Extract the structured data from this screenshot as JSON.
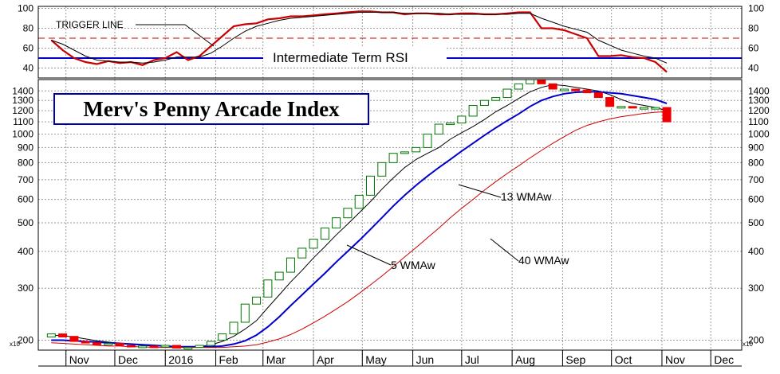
{
  "chart_data": [
    {
      "type": "line",
      "panel": "rsi",
      "annotations": [
        "TRIGGER LINE",
        "Intermediate Term RSI"
      ],
      "ylim": [
        30,
        102
      ],
      "yticks": [
        40,
        60,
        80,
        100
      ],
      "reference_lines": [
        {
          "y": 70,
          "style": "dashed",
          "color": "#cc0000"
        },
        {
          "y": 50,
          "style": "solid",
          "color": "#0000cc"
        }
      ],
      "x": [
        "2015-10-23",
        "2015-10-30",
        "2015-11-06",
        "2015-11-13",
        "2015-11-20",
        "2015-11-27",
        "2015-12-04",
        "2015-12-11",
        "2015-12-18",
        "2015-12-25",
        "2016-01-01",
        "2016-01-08",
        "2016-01-15",
        "2016-01-22",
        "2016-01-29",
        "2016-02-05",
        "2016-02-12",
        "2016-02-19",
        "2016-02-26",
        "2016-03-04",
        "2016-03-11",
        "2016-03-18",
        "2016-03-25",
        "2016-04-01",
        "2016-04-08",
        "2016-04-15",
        "2016-04-22",
        "2016-04-29",
        "2016-05-06",
        "2016-05-13",
        "2016-05-20",
        "2016-05-27",
        "2016-06-03",
        "2016-06-10",
        "2016-06-17",
        "2016-06-24",
        "2016-07-01",
        "2016-07-08",
        "2016-07-15",
        "2016-07-22",
        "2016-07-29",
        "2016-08-05",
        "2016-08-12",
        "2016-08-19",
        "2016-08-26",
        "2016-09-02",
        "2016-09-09",
        "2016-09-16",
        "2016-09-23",
        "2016-09-30",
        "2016-10-07",
        "2016-10-14",
        "2016-10-21",
        "2016-10-28",
        "2016-11-04"
      ],
      "series": [
        {
          "role": "rsi",
          "color": "#cc0000",
          "values": [
            68,
            58,
            50,
            46,
            44,
            47,
            45,
            46,
            43,
            48,
            50,
            56,
            48,
            52,
            62,
            72,
            82,
            84,
            85,
            89,
            90,
            92,
            92,
            93,
            94,
            95,
            96,
            97,
            97,
            96,
            96,
            94,
            95,
            95,
            94,
            94,
            95,
            95,
            94,
            94,
            95,
            96,
            96,
            80,
            80,
            78,
            74,
            70,
            52,
            52,
            53,
            51,
            50,
            46,
            36
          ]
        },
        {
          "role": "trigger",
          "color": "#000000",
          "values": [
            68,
            64,
            58,
            52,
            48,
            47,
            46,
            46,
            45,
            46,
            48,
            51,
            51,
            51,
            55,
            62,
            70,
            77,
            82,
            85,
            88,
            90,
            91,
            92,
            93,
            94,
            95,
            96,
            96,
            96,
            96,
            95,
            95,
            95,
            95,
            94,
            94,
            94,
            94,
            94,
            94,
            95,
            95,
            90,
            86,
            82,
            79,
            76,
            68,
            63,
            58,
            55,
            52,
            50,
            45
          ]
        }
      ]
    },
    {
      "type": "candlestick",
      "panel": "price",
      "title": "Merv's Penny Arcade Index",
      "y_scale": "log",
      "ylim": [
        185,
        1530
      ],
      "yticks": [
        200,
        300,
        400,
        500,
        600,
        700,
        800,
        900,
        1000,
        1100,
        1200,
        1300,
        1400
      ],
      "y_unit_marker": "x10",
      "x_tick_labels": [
        "Nov",
        "Dec",
        "2016",
        "Feb",
        "Mar",
        "Apr",
        "May",
        "Jun",
        "Jul",
        "Aug",
        "Sep",
        "Oct",
        "Nov",
        "Dec"
      ],
      "x_tick_dates": [
        "2015-11-01",
        "2015-12-01",
        "2016-01-01",
        "2016-02-01",
        "2016-03-01",
        "2016-04-01",
        "2016-05-01",
        "2016-06-01",
        "2016-07-01",
        "2016-08-01",
        "2016-09-01",
        "2016-10-01",
        "2016-11-01",
        "2016-12-01"
      ],
      "x": [
        "2015-10-23",
        "2015-10-30",
        "2015-11-06",
        "2015-11-13",
        "2015-11-20",
        "2015-11-27",
        "2015-12-04",
        "2015-12-11",
        "2015-12-18",
        "2015-12-25",
        "2016-01-01",
        "2016-01-08",
        "2016-01-15",
        "2016-01-22",
        "2016-01-29",
        "2016-02-05",
        "2016-02-12",
        "2016-02-19",
        "2016-02-26",
        "2016-03-04",
        "2016-03-11",
        "2016-03-18",
        "2016-03-25",
        "2016-04-01",
        "2016-04-08",
        "2016-04-15",
        "2016-04-22",
        "2016-04-29",
        "2016-05-06",
        "2016-05-13",
        "2016-05-20",
        "2016-05-27",
        "2016-06-03",
        "2016-06-10",
        "2016-06-17",
        "2016-06-24",
        "2016-07-01",
        "2016-07-08",
        "2016-07-15",
        "2016-07-22",
        "2016-07-29",
        "2016-08-05",
        "2016-08-12",
        "2016-08-19",
        "2016-08-26",
        "2016-09-02",
        "2016-09-09",
        "2016-09-16",
        "2016-09-23",
        "2016-09-30",
        "2016-10-07",
        "2016-10-14",
        "2016-10-21",
        "2016-10-28",
        "2016-11-04"
      ],
      "open": [
        205,
        210,
        206,
        198,
        196,
        193,
        195,
        192,
        190,
        191,
        190,
        192,
        188,
        189,
        192,
        200,
        210,
        230,
        265,
        280,
        320,
        340,
        380,
        410,
        440,
        480,
        520,
        560,
        620,
        720,
        800,
        860,
        870,
        900,
        1000,
        1080,
        1090,
        1150,
        1250,
        1300,
        1330,
        1420,
        1480,
        1530,
        1480,
        1420,
        1420,
        1410,
        1380,
        1330,
        1240,
        1240,
        1230,
        1230,
        1230
      ],
      "close": [
        210,
        205,
        198,
        196,
        193,
        195,
        192,
        190,
        191,
        190,
        192,
        188,
        189,
        192,
        198,
        210,
        230,
        265,
        280,
        320,
        340,
        380,
        410,
        440,
        480,
        520,
        560,
        620,
        720,
        800,
        860,
        870,
        900,
        1000,
        1080,
        1090,
        1150,
        1250,
        1300,
        1330,
        1420,
        1480,
        1530,
        1480,
        1420,
        1420,
        1410,
        1380,
        1330,
        1240,
        1240,
        1230,
        1230,
        1230,
        1100
      ],
      "series": [
        {
          "name": "5 WMAw",
          "color": "#000000",
          "values": [
            208,
            207,
            205,
            202,
            199,
            197,
            195,
            194,
            192,
            191,
            191,
            190,
            190,
            190,
            193,
            198,
            206,
            218,
            233,
            258,
            285,
            315,
            345,
            380,
            415,
            455,
            495,
            540,
            590,
            650,
            710,
            770,
            820,
            860,
            900,
            960,
            1010,
            1060,
            1120,
            1190,
            1250,
            1320,
            1390,
            1440,
            1470,
            1460,
            1440,
            1420,
            1400,
            1360,
            1310,
            1270,
            1250,
            1230,
            1200
          ]
        },
        {
          "name": "13 WMAw",
          "color": "#0000cc",
          "values": [
            200,
            200,
            199,
            198,
            197,
            196,
            195,
            194,
            193,
            192,
            191,
            190,
            190,
            190,
            190,
            191,
            194,
            199,
            208,
            222,
            240,
            262,
            285,
            310,
            337,
            368,
            400,
            435,
            475,
            520,
            570,
            620,
            670,
            720,
            770,
            820,
            875,
            930,
            990,
            1050,
            1110,
            1170,
            1240,
            1300,
            1340,
            1370,
            1385,
            1390,
            1390,
            1380,
            1370,
            1350,
            1330,
            1310,
            1270
          ]
        },
        {
          "name": "40 WMAw",
          "color": "#cc0000",
          "values": [
            196,
            195,
            194,
            193,
            192,
            191,
            191,
            190,
            190,
            189,
            189,
            189,
            189,
            189,
            189,
            189,
            190,
            191,
            193,
            197,
            202,
            209,
            218,
            229,
            241,
            255,
            270,
            288,
            308,
            330,
            355,
            383,
            412,
            445,
            480,
            520,
            560,
            600,
            645,
            690,
            735,
            780,
            830,
            880,
            930,
            980,
            1030,
            1070,
            1100,
            1125,
            1145,
            1160,
            1175,
            1185,
            1190
          ]
        }
      ]
    }
  ]
}
